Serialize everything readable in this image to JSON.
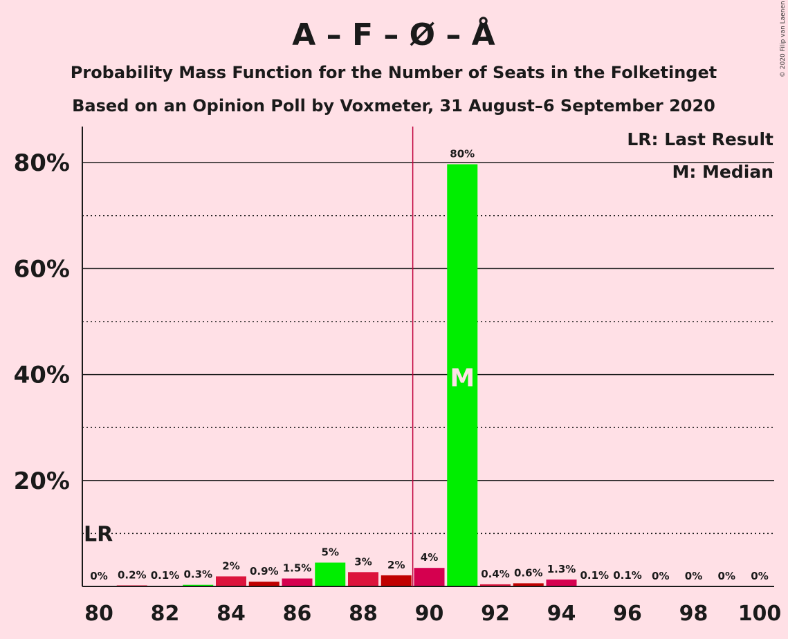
{
  "title": "A – F – Ø – Å",
  "subtitle1": "Probability Mass Function for the Number of Seats in the Folketinget",
  "subtitle2": "Based on an Opinion Poll by Voxmeter, 31 August–6 September 2020",
  "copyright": "© 2020 Filip van Laenen",
  "legend": {
    "last_result": "LR: Last Result",
    "median": "M: Median"
  },
  "markers": {
    "lr_label": "LR",
    "median_label": "M"
  },
  "colors": {
    "background": "#ffe0e6",
    "highlight_green": "#00ee00",
    "crimson": "#dc143c",
    "dark_red": "#c00000",
    "magenta_red": "#d5004f",
    "majority_line": "#c0003c"
  },
  "chart_data": {
    "type": "bar",
    "x": [
      80,
      81,
      82,
      83,
      84,
      85,
      86,
      87,
      88,
      89,
      90,
      91,
      92,
      93,
      94,
      95,
      96,
      97,
      98,
      99,
      100
    ],
    "values": [
      0,
      0.2,
      0.1,
      0.3,
      2,
      0.9,
      1.5,
      5,
      3,
      2,
      4,
      80,
      0.4,
      0.6,
      1.3,
      0.1,
      0.1,
      0,
      0,
      0,
      0
    ],
    "bar_heights": [
      0,
      0.2,
      0.1,
      0.3,
      1.9,
      0.9,
      1.5,
      4.5,
      2.7,
      2.1,
      3.5,
      79.7,
      0.4,
      0.6,
      1.3,
      0.1,
      0.1,
      0,
      0,
      0,
      0
    ],
    "value_labels": [
      "0%",
      "0.2%",
      "0.1%",
      "0.3%",
      "2%",
      "0.9%",
      "1.5%",
      "5%",
      "3%",
      "2%",
      "4%",
      "80%",
      "0.4%",
      "0.6%",
      "1.3%",
      "0.1%",
      "0.1%",
      "0%",
      "0%",
      "0%",
      "0%"
    ],
    "bar_colors": [
      "#dc143c",
      "#dc143c",
      "#dc143c",
      "#00ee00",
      "#dc143c",
      "#c00000",
      "#d5004f",
      "#00ee00",
      "#dc143c",
      "#c00000",
      "#d5004f",
      "#00ee00",
      "#dc143c",
      "#c00000",
      "#d5004f",
      "#00ee00",
      "#dc143c",
      "#c00000",
      "#d5004f",
      "#00ee00",
      "#dc143c"
    ],
    "x_ticks": [
      80,
      82,
      84,
      86,
      88,
      90,
      92,
      94,
      96,
      98,
      100
    ],
    "x_tick_labels": [
      "80",
      "82",
      "84",
      "86",
      "88",
      "90",
      "92",
      "94",
      "96",
      "98",
      "100"
    ],
    "y_ticks_major": [
      20,
      40,
      60,
      80
    ],
    "y_tick_labels": [
      "20%",
      "40%",
      "60%",
      "80%"
    ],
    "y_ticks_minor": [
      10,
      30,
      50,
      70
    ],
    "ylim": [
      0,
      87
    ],
    "xlim": [
      79.5,
      100.5
    ],
    "last_result_y": 10,
    "majority_line_x": 89.5,
    "median_x": 91,
    "median_label_y": 39.5,
    "legend_position": "top-right",
    "grid": true
  }
}
